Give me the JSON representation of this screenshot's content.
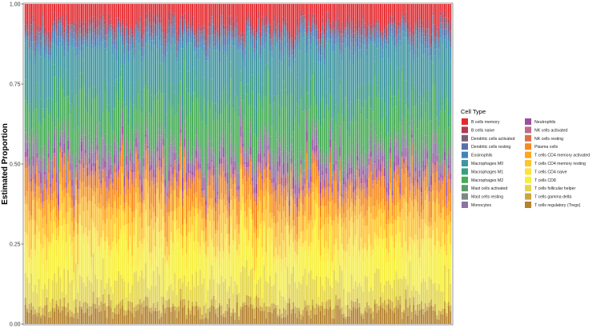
{
  "chart_data": {
    "type": "bar",
    "stacked": true,
    "ylabel": "Estimated Proportion",
    "xlabel": "",
    "ylim": [
      0,
      1
    ],
    "yticks": [
      0.0,
      0.25,
      0.5,
      0.75,
      1.0
    ],
    "ytick_labels": [
      "0.00",
      "0.25",
      "0.50",
      "0.75",
      "1.00"
    ],
    "grid": false,
    "legend_title": "Cell Type",
    "legend_position": "right",
    "n_samples": 220,
    "series": [
      {
        "name": "T cells regulatory (Tregs)",
        "color": "#b5822e",
        "values": [
          0.035
        ]
      },
      {
        "name": "T cells gamma delta",
        "color": "#c9a740",
        "values": [
          0.02
        ]
      },
      {
        "name": "T cells follicular helper",
        "color": "#e3d54a",
        "values": [
          0.065
        ]
      },
      {
        "name": "T cells CD8",
        "color": "#f6ef3c",
        "values": [
          0.1
        ]
      },
      {
        "name": "T cells CD4 naive",
        "color": "#ffe138",
        "values": [
          0.03
        ]
      },
      {
        "name": "T cells CD4 memory resting",
        "color": "#ffc42e",
        "values": [
          0.07
        ]
      },
      {
        "name": "T cells CD4 memory activated",
        "color": "#ffa51e",
        "values": [
          0.03
        ]
      },
      {
        "name": "Plasma cells",
        "color": "#f58a1f",
        "values": [
          0.05
        ]
      },
      {
        "name": "NK cells resting",
        "color": "#d97245",
        "values": [
          0.02
        ]
      },
      {
        "name": "NK cells activated",
        "color": "#c06a8a",
        "values": [
          0.015
        ]
      },
      {
        "name": "Neutrophils",
        "color": "#9c4f9f",
        "values": [
          0.02
        ]
      },
      {
        "name": "Monocytes",
        "color": "#8d72a2",
        "values": [
          0.03
        ]
      },
      {
        "name": "Mast cells resting",
        "color": "#7b8a82",
        "values": [
          0.02
        ]
      },
      {
        "name": "Mast cells activated",
        "color": "#5c9b6d",
        "values": [
          0.02
        ]
      },
      {
        "name": "Macrophages M2",
        "color": "#45ad55",
        "values": [
          0.1
        ]
      },
      {
        "name": "Macrophages M1",
        "color": "#3a9f7e",
        "values": [
          0.05
        ]
      },
      {
        "name": "Macrophages M0",
        "color": "#3f96a0",
        "values": [
          0.12
        ]
      },
      {
        "name": "Eosinophils",
        "color": "#3e86b8",
        "values": [
          0.02
        ]
      },
      {
        "name": "Dendritic cells resting",
        "color": "#5870a8",
        "values": [
          0.02
        ]
      },
      {
        "name": "Dendritic cells activated",
        "color": "#7b5f7c",
        "values": [
          0.02
        ]
      },
      {
        "name": "B cells naive",
        "color": "#b23a52",
        "values": [
          0.02
        ]
      },
      {
        "name": "B cells memory",
        "color": "#e42a2f",
        "values": [
          0.05
        ]
      }
    ]
  },
  "legend_left": [
    "B cells memory",
    "B cells naive",
    "Dendritic cells activated",
    "Dendritic cells resting",
    "Eosinophils",
    "Macrophages M0",
    "Macrophages M1",
    "Macrophages M2",
    "Mast cells activated",
    "Mast cells resting",
    "Monocytes"
  ],
  "legend_right": [
    "Neutrophils",
    "NK cells activated",
    "NK cells resting",
    "Plasma cells",
    "T cells CD4 memory activated",
    "T cells CD4 memory resting",
    "T cells CD4 naive",
    "T cells CD8",
    "T cells follicular helper",
    "T cells gamma delta",
    "T cells regulatory (Tregs)"
  ]
}
